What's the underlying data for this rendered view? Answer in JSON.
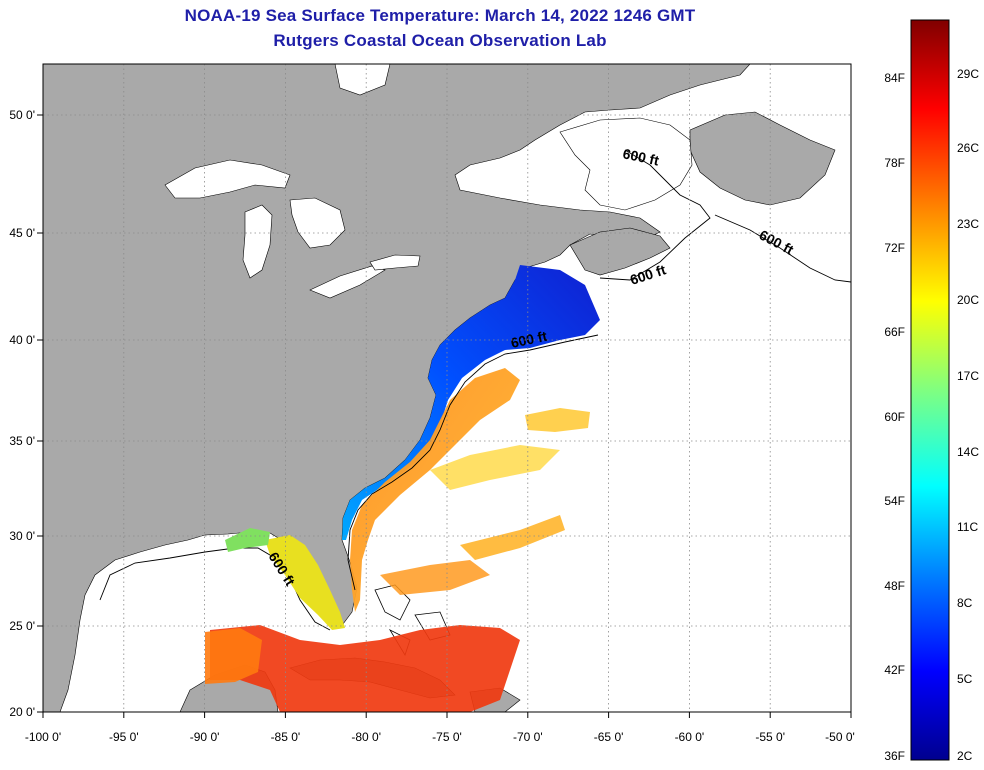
{
  "header": {
    "title": "NOAA-19 Sea Surface Temperature:  March 14, 2022 1246 GMT",
    "subtitle": "Rutgers Coastal Ocean Observation Lab"
  },
  "map": {
    "lon_range": [
      -100,
      -50
    ],
    "lat_range": [
      20,
      52.5
    ],
    "lon_ticks": [
      "-100 0'",
      "-95 0'",
      "-90 0'",
      "-85 0'",
      "-80 0'",
      "-75 0'",
      "-70 0'",
      "-65 0'",
      "-60 0'",
      "-55 0'",
      "-50 0'"
    ],
    "lat_ticks": [
      "50 0'",
      "45 0'",
      "40 0'",
      "35 0'",
      "30 0'",
      "25 0'",
      "20 0'"
    ],
    "isobath_labels": [
      "600 ft",
      "600 ft",
      "600 ft",
      "600 ft",
      "600 ft"
    ],
    "colors": {
      "land": "#a9a9a9",
      "ocean_no_data": "#ffffff",
      "grid": "#8a8a8a"
    }
  },
  "colorbar": {
    "fahrenheit_labels": [
      "84F",
      "78F",
      "72F",
      "66F",
      "60F",
      "54F",
      "48F",
      "42F",
      "36F"
    ],
    "celsius_labels": [
      "29C",
      "26C",
      "23C",
      "20C",
      "17C",
      "14C",
      "11C",
      "8C",
      "5C",
      "2C"
    ],
    "colors": [
      "#00008f",
      "#0000ff",
      "#0080ff",
      "#00ffff",
      "#80ff80",
      "#ffff00",
      "#ff8000",
      "#ff0000",
      "#800000"
    ]
  }
}
